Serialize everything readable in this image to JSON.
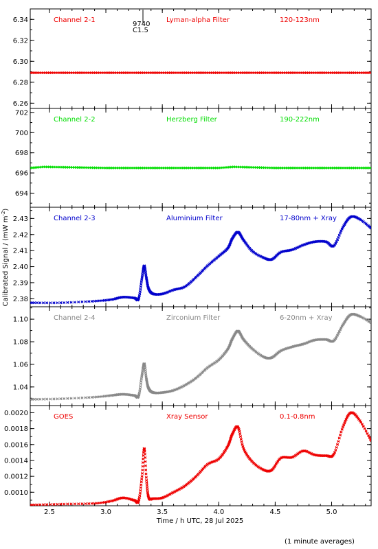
{
  "figure": {
    "x_axis_label": "Time / h UTC, 28 Jul 2025",
    "y_axis_label": "Calibrated Signal / (mW m",
    "y_axis_label_sup": "-2",
    "y_axis_label_end": ")",
    "footnote": "(1 minute averages)",
    "flare_marker": {
      "time": 3.33,
      "label_top": "9740",
      "label_bottom": "C1.5"
    }
  },
  "chart_data": [
    {
      "type": "scatter",
      "channel": "Channel 2-1",
      "filter": "Lyman-alpha Filter",
      "band": "120-123nm",
      "color": "#ee0000",
      "xlim": [
        2.33,
        5.35
      ],
      "ylim": [
        6.255,
        6.35
      ],
      "yticks": [
        6.26,
        6.28,
        6.3,
        6.32,
        6.34
      ],
      "ytick_labels": [
        "6.26",
        "6.28",
        "6.30",
        "6.32",
        "6.34"
      ],
      "x": [
        2.33,
        5.35
      ],
      "y": [
        6.289,
        6.289
      ],
      "style": "flat"
    },
    {
      "type": "scatter",
      "channel": "Channel 2-2",
      "filter": "Herzberg Filter",
      "band": "190-222nm",
      "color": "#00dd00",
      "xlim": [
        2.33,
        5.35
      ],
      "ylim": [
        692.6,
        702.4
      ],
      "yticks": [
        694,
        696,
        698,
        700,
        702
      ],
      "ytick_labels": [
        "694",
        "696",
        "698",
        "700",
        "702"
      ],
      "x": [
        2.33,
        2.45,
        3.0,
        3.5,
        4.0,
        4.13,
        4.5,
        5.0,
        5.35
      ],
      "y": [
        696.5,
        696.6,
        696.5,
        696.5,
        696.5,
        696.6,
        696.5,
        696.5,
        696.5
      ],
      "style": "flat"
    },
    {
      "type": "scatter",
      "channel": "Channel 2-3",
      "filter": "Aluminium Filter",
      "band": "17-80nm + Xray",
      "color": "#0000cc",
      "xlim": [
        2.33,
        5.35
      ],
      "ylim": [
        2.375,
        2.437
      ],
      "yticks": [
        2.38,
        2.39,
        2.4,
        2.41,
        2.42,
        2.43
      ],
      "ytick_labels": [
        "2.38",
        "2.39",
        "2.40",
        "2.41",
        "2.42",
        "2.43"
      ],
      "x": [
        2.33,
        2.6,
        2.9,
        3.05,
        3.15,
        3.25,
        3.29,
        3.32,
        3.34,
        3.36,
        3.38,
        3.42,
        3.5,
        3.6,
        3.7,
        3.8,
        3.9,
        4.0,
        4.08,
        4.12,
        4.17,
        4.22,
        4.3,
        4.4,
        4.47,
        4.55,
        4.65,
        4.75,
        4.85,
        4.95,
        5.02,
        5.1,
        5.17,
        5.25,
        5.35
      ],
      "y": [
        2.3775,
        2.3775,
        2.3785,
        2.3795,
        2.381,
        2.3805,
        2.38,
        2.393,
        2.4005,
        2.3925,
        2.386,
        2.383,
        2.383,
        2.3855,
        2.3875,
        2.3935,
        2.4005,
        2.4065,
        2.4115,
        2.4175,
        2.4215,
        2.4165,
        2.4095,
        2.4055,
        2.4045,
        2.409,
        2.4105,
        2.4135,
        2.4155,
        2.4155,
        2.413,
        2.4245,
        2.431,
        2.4295,
        2.424
      ],
      "style": "curve"
    },
    {
      "type": "scatter",
      "channel": "Channel 2-4",
      "filter": "Zirconium Filter",
      "band": "6-20nm + Xray",
      "color": "#888888",
      "xlim": [
        2.33,
        5.35
      ],
      "ylim": [
        1.0235,
        1.111
      ],
      "yticks": [
        1.04,
        1.06,
        1.08,
        1.1
      ],
      "ytick_labels": [
        "1.04",
        "1.06",
        "1.08",
        "1.10"
      ],
      "x": [
        2.33,
        2.6,
        2.9,
        3.05,
        3.15,
        3.25,
        3.29,
        3.32,
        3.34,
        3.36,
        3.38,
        3.42,
        3.5,
        3.6,
        3.7,
        3.8,
        3.9,
        4.0,
        4.08,
        4.12,
        4.17,
        4.22,
        4.3,
        4.4,
        4.47,
        4.55,
        4.65,
        4.75,
        4.85,
        4.95,
        5.02,
        5.1,
        5.17,
        5.25,
        5.35
      ],
      "y": [
        1.029,
        1.0295,
        1.031,
        1.0325,
        1.0335,
        1.0325,
        1.032,
        1.0505,
        1.0605,
        1.0465,
        1.0385,
        1.035,
        1.035,
        1.037,
        1.0415,
        1.048,
        1.057,
        1.064,
        1.0735,
        1.0825,
        1.0895,
        1.082,
        1.0735,
        1.0665,
        1.066,
        1.072,
        1.0755,
        1.078,
        1.0815,
        1.082,
        1.081,
        1.095,
        1.104,
        1.1025,
        1.097
      ],
      "style": "curve"
    },
    {
      "type": "scatter",
      "channel": "GOES",
      "filter": "Xray Sensor",
      "band": "0.1-0.8nm",
      "color": "#ee0000",
      "xlim": [
        2.33,
        5.35
      ],
      "ylim": [
        0.00083,
        0.00209
      ],
      "yticks": [
        0.001,
        0.0012,
        0.0014,
        0.0016,
        0.0018,
        0.002
      ],
      "ytick_labels": [
        "0.0010",
        "0.0012",
        "0.0014",
        "0.0016",
        "0.0018",
        "0.0020"
      ],
      "x": [
        2.33,
        2.6,
        2.9,
        3.05,
        3.15,
        3.25,
        3.29,
        3.32,
        3.34,
        3.36,
        3.38,
        3.42,
        3.5,
        3.6,
        3.7,
        3.8,
        3.9,
        4.0,
        4.08,
        4.12,
        4.17,
        4.22,
        4.3,
        4.4,
        4.47,
        4.55,
        4.65,
        4.75,
        4.85,
        4.95,
        5.02,
        5.1,
        5.17,
        5.25,
        5.35
      ],
      "y": [
        0.00084,
        0.00085,
        0.00086,
        0.00089,
        0.00093,
        0.0009,
        0.00089,
        0.0012,
        0.00155,
        0.00115,
        0.00093,
        0.00092,
        0.00093,
        0.001,
        0.00108,
        0.0012,
        0.00135,
        0.00142,
        0.00158,
        0.00173,
        0.00182,
        0.00155,
        0.00138,
        0.00128,
        0.00128,
        0.00143,
        0.00144,
        0.00152,
        0.00147,
        0.00146,
        0.00148,
        0.00182,
        0.002,
        0.0019,
        0.00165
      ],
      "style": "curve"
    }
  ],
  "x_axis": {
    "xlim": [
      2.33,
      5.35
    ],
    "ticks": [
      2.5,
      3.0,
      3.5,
      4.0,
      4.5,
      5.0
    ],
    "tick_labels": [
      "2.5",
      "3.0",
      "3.5",
      "4.0",
      "4.5",
      "5.0"
    ]
  }
}
